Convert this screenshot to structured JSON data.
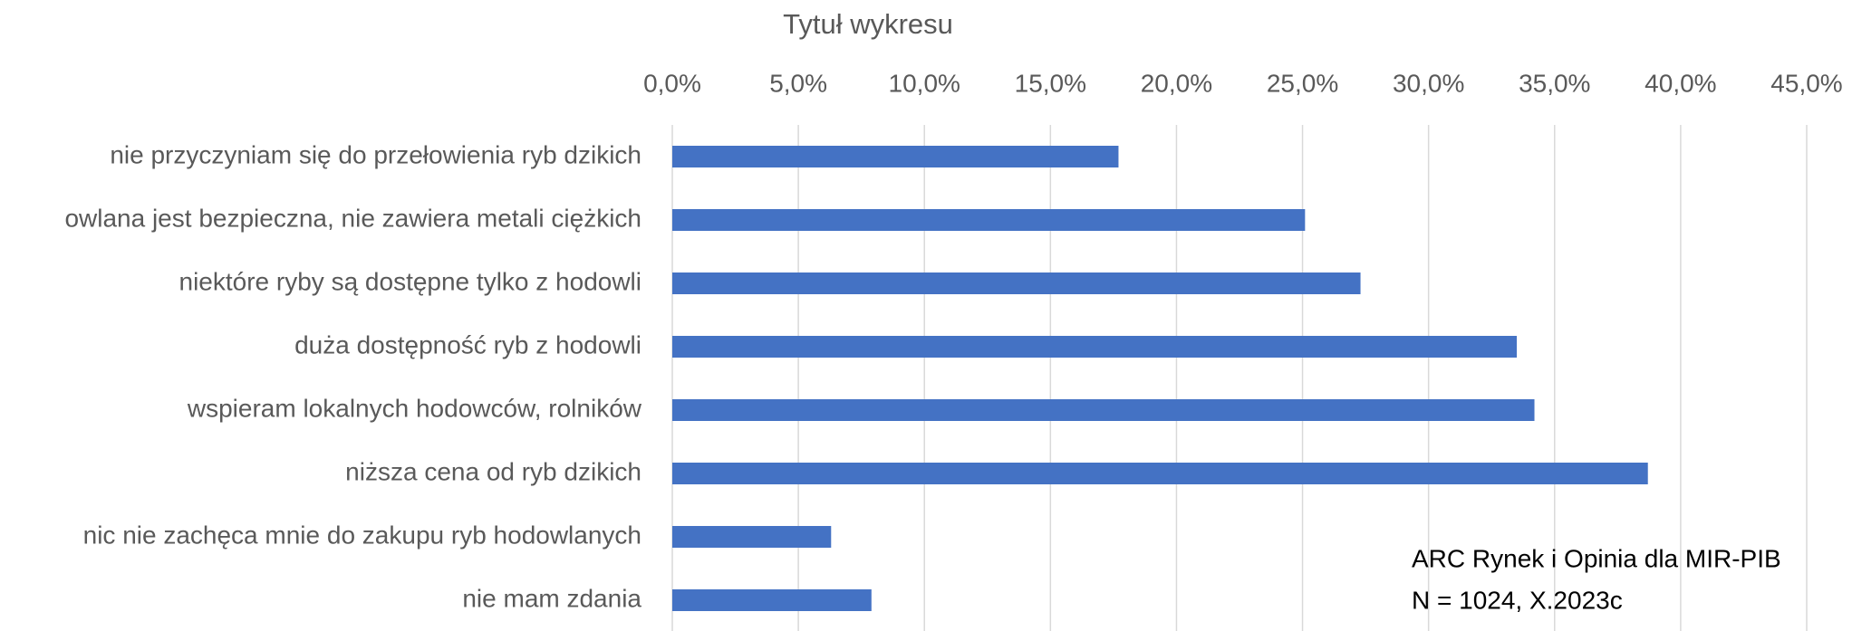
{
  "chart_data": {
    "type": "barh",
    "title": "Tytuł wykresu",
    "categories": [
      "nie przyczyniam się do przełowienia ryb dzikich",
      "owlana jest bezpieczna, nie zawiera metali ciężkich",
      "niektóre ryby są dostępne tylko z hodowli",
      "duża dostępność ryb z hodowli",
      "wspieram lokalnych hodowców, rolników",
      "niższa cena od ryb dzikich",
      "nic nie zachęca mnie do zakupu ryb hodowlanych",
      "nie mam zdania"
    ],
    "values": [
      17.7,
      25.1,
      27.3,
      33.5,
      34.2,
      38.7,
      6.3,
      7.9
    ],
    "color": "#4472c4",
    "xlim": [
      0,
      45
    ],
    "xticks": [
      {
        "value": 0,
        "label": "0,0%"
      },
      {
        "value": 5,
        "label": "5,0%"
      },
      {
        "value": 10,
        "label": "10,0%"
      },
      {
        "value": 15,
        "label": "15,0%"
      },
      {
        "value": 20,
        "label": "20,0%"
      },
      {
        "value": 25,
        "label": "25,0%"
      },
      {
        "value": 30,
        "label": "30,0%"
      },
      {
        "value": 35,
        "label": "35,0%"
      },
      {
        "value": 40,
        "label": "40,0%"
      },
      {
        "value": 45,
        "label": "45,0%"
      }
    ],
    "grid": true,
    "annotations": [
      "ARC Rynek i Opinia dla MIR-PIB",
      "N = 1024, X.2023c"
    ]
  }
}
